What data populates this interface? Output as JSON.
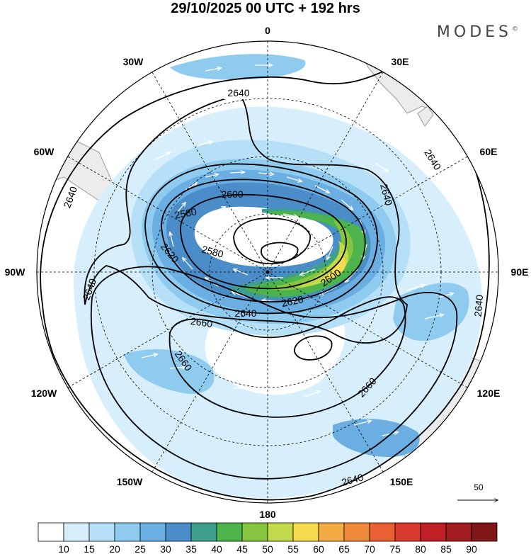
{
  "title": "29/10/2025  00 UTC  + 192 hrs",
  "brand": "MODES",
  "brand_mark": "©",
  "longitude_labels": [
    "0",
    "30E",
    "60E",
    "90E",
    "120E",
    "150E",
    "180",
    "150W",
    "120W",
    "90W",
    "60W",
    "30W"
  ],
  "contour_labels": [
    "2640",
    "2640",
    "2640",
    "2640",
    "2640",
    "2640",
    "2640",
    "2600",
    "2600",
    "2580",
    "2580",
    "2620",
    "2620",
    "2640",
    "2660",
    "2660",
    "2660"
  ],
  "vector_reference": {
    "value": "50"
  },
  "colorbar": {
    "labels": [
      "10",
      "15",
      "20",
      "25",
      "30",
      "35",
      "40",
      "45",
      "50",
      "55",
      "60",
      "65",
      "70",
      "75",
      "80",
      "85",
      "90"
    ],
    "colors": [
      "#ffffff",
      "#d7effc",
      "#b5e0f7",
      "#8fcbef",
      "#6aaee2",
      "#4a8dc8",
      "#3f9f8f",
      "#4db34d",
      "#86c540",
      "#c2d94a",
      "#f4dc4e",
      "#f5ab43",
      "#ef8a3a",
      "#e96133",
      "#d93a2d",
      "#c01f26",
      "#a11c1e",
      "#7f1617"
    ]
  },
  "colors": {
    "land": "#ececec",
    "coast": "#9a9a9a",
    "graticule": "#000000"
  }
}
